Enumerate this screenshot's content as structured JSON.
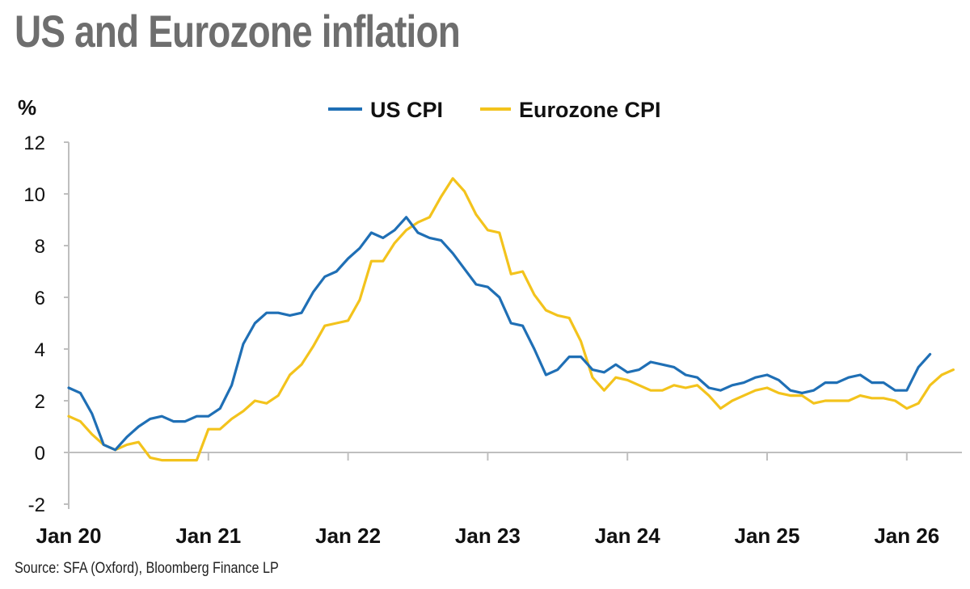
{
  "title": "US and Eurozone inflation",
  "unit_label": "%",
  "source": "Source: SFA (Oxford), Bloomberg Finance LP",
  "colors": {
    "us": "#1f6fb5",
    "eurozone": "#f3c31c",
    "axis": "#bfbfbf"
  },
  "chart_data": {
    "type": "line",
    "title": "US and Eurozone inflation",
    "xlabel": "",
    "ylabel": "%",
    "ylim": [
      -2,
      12
    ],
    "yticks": [
      -2,
      0,
      2,
      4,
      6,
      8,
      10,
      12
    ],
    "xlim": [
      "Jan 20",
      "Jun 26"
    ],
    "xticks": [
      "Jan 20",
      "Jan 21",
      "Jan 22",
      "Jan 23",
      "Jan 24",
      "Jan 25",
      "Jan 26"
    ],
    "grid": false,
    "legend": "top-center",
    "x_start": "Jan 20",
    "series": [
      {
        "name": "US CPI",
        "color": "#1f6fb5",
        "values": [
          2.5,
          2.3,
          1.5,
          0.3,
          0.1,
          0.6,
          1.0,
          1.3,
          1.4,
          1.2,
          1.2,
          1.4,
          1.4,
          1.7,
          2.6,
          4.2,
          5.0,
          5.4,
          5.4,
          5.3,
          5.4,
          6.2,
          6.8,
          7.0,
          7.5,
          7.9,
          8.5,
          8.3,
          8.6,
          9.1,
          8.5,
          8.3,
          8.2,
          7.7,
          7.1,
          6.5,
          6.4,
          6.0,
          5.0,
          4.9,
          4.0,
          3.0,
          3.2,
          3.7,
          3.7,
          3.2,
          3.1,
          3.4,
          3.1,
          3.2,
          3.5,
          3.4,
          3.3,
          3.0,
          2.9,
          2.5,
          2.4,
          2.6,
          2.7,
          2.9,
          3.0,
          2.8,
          2.4,
          2.3,
          2.4,
          2.7,
          2.7,
          2.9,
          3.0,
          2.7,
          2.7,
          2.4,
          2.4,
          3.3,
          3.8
        ]
      },
      {
        "name": "Eurozone CPI",
        "color": "#f3c31c",
        "values": [
          1.4,
          1.2,
          0.7,
          0.3,
          0.1,
          0.3,
          0.4,
          -0.2,
          -0.3,
          -0.3,
          -0.3,
          -0.3,
          0.9,
          0.9,
          1.3,
          1.6,
          2.0,
          1.9,
          2.2,
          3.0,
          3.4,
          4.1,
          4.9,
          5.0,
          5.1,
          5.9,
          7.4,
          7.4,
          8.1,
          8.6,
          8.9,
          9.1,
          9.9,
          10.6,
          10.1,
          9.2,
          8.6,
          8.5,
          6.9,
          7.0,
          6.1,
          5.5,
          5.3,
          5.2,
          4.3,
          2.9,
          2.4,
          2.9,
          2.8,
          2.6,
          2.4,
          2.4,
          2.6,
          2.5,
          2.6,
          2.2,
          1.7,
          2.0,
          2.2,
          2.4,
          2.5,
          2.3,
          2.2,
          2.2,
          1.9,
          2.0,
          2.0,
          2.0,
          2.2,
          2.1,
          2.1,
          2.0,
          1.7,
          1.9,
          2.6,
          3.0,
          3.2
        ]
      }
    ]
  }
}
